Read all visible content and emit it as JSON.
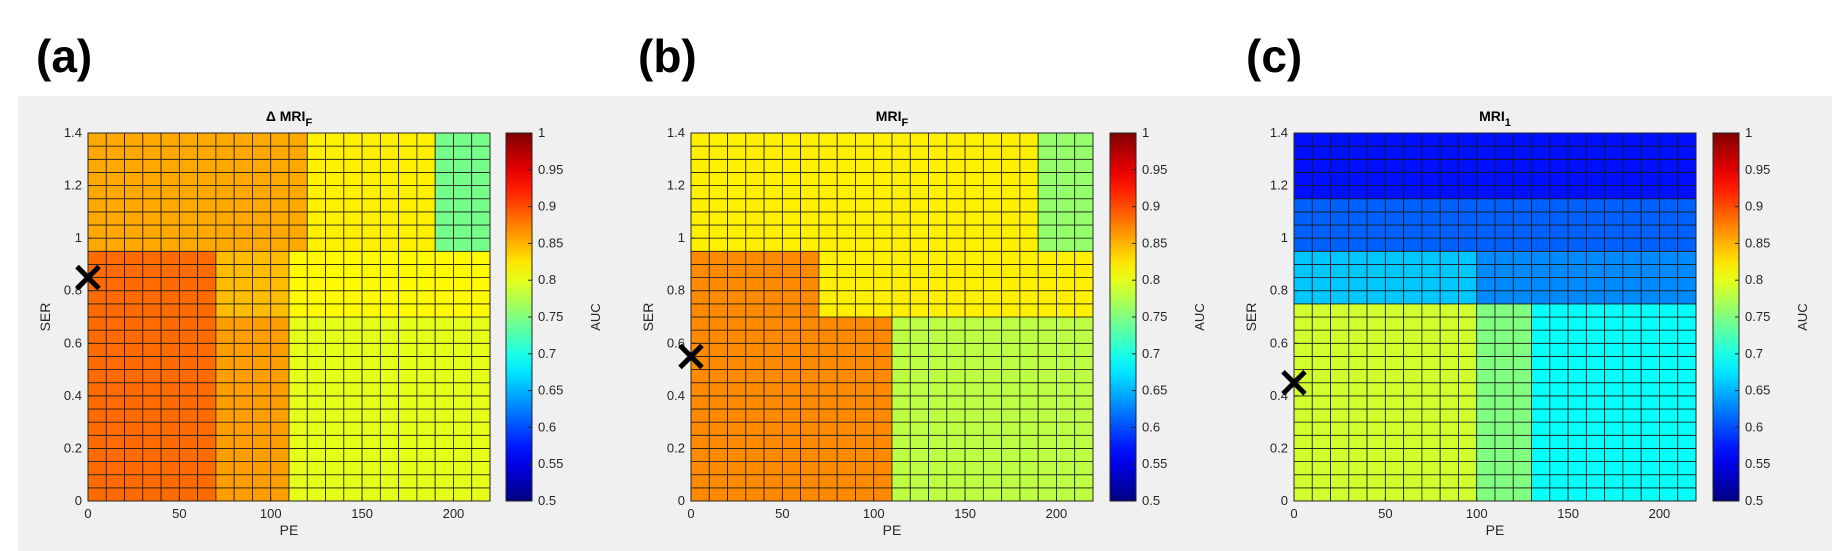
{
  "figure": {
    "panels": [
      "(a)",
      "(b)",
      "(c)"
    ]
  },
  "chart_data": [
    {
      "type": "heatmap",
      "panel_label": "(a)",
      "title": "Δ MRI",
      "title_subscript": "F",
      "xlabel": "PE",
      "ylabel": "SER",
      "colorbar_label": "AUC",
      "colormap": "jet",
      "clim": [
        0.5,
        1
      ],
      "xlim": [
        0,
        220
      ],
      "ylim": [
        0,
        1.4
      ],
      "x_ticks": [
        0,
        50,
        100,
        150,
        200
      ],
      "y_ticks": [
        0,
        0.2,
        0.4,
        0.6,
        0.8,
        1,
        1.2,
        1.4
      ],
      "colorbar_ticks": [
        0.5,
        0.55,
        0.6,
        0.65,
        0.7,
        0.75,
        0.8,
        0.85,
        0.9,
        0.95,
        1
      ],
      "grid_cols": 22,
      "grid_rows": 28,
      "cell_width_PE": 10,
      "cell_height_SER": 0.05,
      "regions": [
        {
          "pe": [
            0,
            120
          ],
          "ser": [
            0.95,
            1.4
          ],
          "auc": 0.855
        },
        {
          "pe": [
            120,
            190
          ],
          "ser": [
            0.95,
            1.4
          ],
          "auc": 0.82
        },
        {
          "pe": [
            190,
            220
          ],
          "ser": [
            0.95,
            1.4
          ],
          "auc": 0.745
        },
        {
          "pe": [
            0,
            70
          ],
          "ser": [
            0,
            0.95
          ],
          "auc": 0.885
        },
        {
          "pe": [
            70,
            110
          ],
          "ser": [
            0.7,
            0.95
          ],
          "auc": 0.845
        },
        {
          "pe": [
            110,
            220
          ],
          "ser": [
            0.7,
            0.95
          ],
          "auc": 0.815
        },
        {
          "pe": [
            70,
            110
          ],
          "ser": [
            0,
            0.7
          ],
          "auc": 0.86
        },
        {
          "pe": [
            110,
            220
          ],
          "ser": [
            0,
            0.7
          ],
          "auc": 0.8
        }
      ],
      "marker": {
        "symbol": "x",
        "pe": 0,
        "ser": 0.85
      }
    },
    {
      "type": "heatmap",
      "panel_label": "(b)",
      "title": "MRI",
      "title_subscript": "F",
      "xlabel": "PE",
      "ylabel": "SER",
      "colorbar_label": "AUC",
      "colormap": "jet",
      "clim": [
        0.5,
        1
      ],
      "xlim": [
        0,
        220
      ],
      "ylim": [
        0,
        1.4
      ],
      "x_ticks": [
        0,
        50,
        100,
        150,
        200
      ],
      "y_ticks": [
        0,
        0.2,
        0.4,
        0.6,
        0.8,
        1,
        1.2,
        1.4
      ],
      "colorbar_ticks": [
        0.5,
        0.55,
        0.6,
        0.65,
        0.7,
        0.75,
        0.8,
        0.85,
        0.9,
        0.95,
        1
      ],
      "grid_cols": 22,
      "grid_rows": 28,
      "cell_width_PE": 10,
      "cell_height_SER": 0.05,
      "regions": [
        {
          "pe": [
            0,
            190
          ],
          "ser": [
            0.95,
            1.4
          ],
          "auc": 0.82
        },
        {
          "pe": [
            190,
            220
          ],
          "ser": [
            0.95,
            1.4
          ],
          "auc": 0.76
        },
        {
          "pe": [
            0,
            70
          ],
          "ser": [
            0.7,
            0.95
          ],
          "auc": 0.87
        },
        {
          "pe": [
            70,
            220
          ],
          "ser": [
            0.7,
            0.95
          ],
          "auc": 0.82
        },
        {
          "pe": [
            0,
            110
          ],
          "ser": [
            0,
            0.7
          ],
          "auc": 0.87
        },
        {
          "pe": [
            110,
            220
          ],
          "ser": [
            0,
            0.7
          ],
          "auc": 0.78
        }
      ],
      "marker": {
        "symbol": "x",
        "pe": 0,
        "ser": 0.55
      }
    },
    {
      "type": "heatmap",
      "panel_label": "(c)",
      "title": "MRI",
      "title_subscript": "1",
      "xlabel": "PE",
      "ylabel": "SER",
      "colorbar_label": "AUC",
      "colormap": "jet",
      "clim": [
        0.5,
        1
      ],
      "xlim": [
        0,
        220
      ],
      "ylim": [
        0,
        1.4
      ],
      "x_ticks": [
        0,
        50,
        100,
        150,
        200
      ],
      "y_ticks": [
        0,
        0.2,
        0.4,
        0.6,
        0.8,
        1,
        1.2,
        1.4
      ],
      "colorbar_ticks": [
        0.5,
        0.55,
        0.6,
        0.65,
        0.7,
        0.75,
        0.8,
        0.85,
        0.9,
        0.95,
        1
      ],
      "grid_cols": 22,
      "grid_rows": 28,
      "cell_width_PE": 10,
      "cell_height_SER": 0.05,
      "regions": [
        {
          "pe": [
            0,
            220
          ],
          "ser": [
            1.15,
            1.4
          ],
          "auc": 0.57
        },
        {
          "pe": [
            0,
            220
          ],
          "ser": [
            0.95,
            1.15
          ],
          "auc": 0.61
        },
        {
          "pe": [
            0,
            100
          ],
          "ser": [
            0.75,
            0.95
          ],
          "auc": 0.66
        },
        {
          "pe": [
            100,
            220
          ],
          "ser": [
            0.75,
            0.95
          ],
          "auc": 0.63
        },
        {
          "pe": [
            0,
            100
          ],
          "ser": [
            0,
            0.75
          ],
          "auc": 0.79
        },
        {
          "pe": [
            100,
            130
          ],
          "ser": [
            0,
            0.75
          ],
          "auc": 0.75
        },
        {
          "pe": [
            130,
            220
          ],
          "ser": [
            0,
            0.75
          ],
          "auc": 0.69
        }
      ],
      "marker": {
        "symbol": "x",
        "pe": 0,
        "ser": 0.45
      }
    }
  ]
}
